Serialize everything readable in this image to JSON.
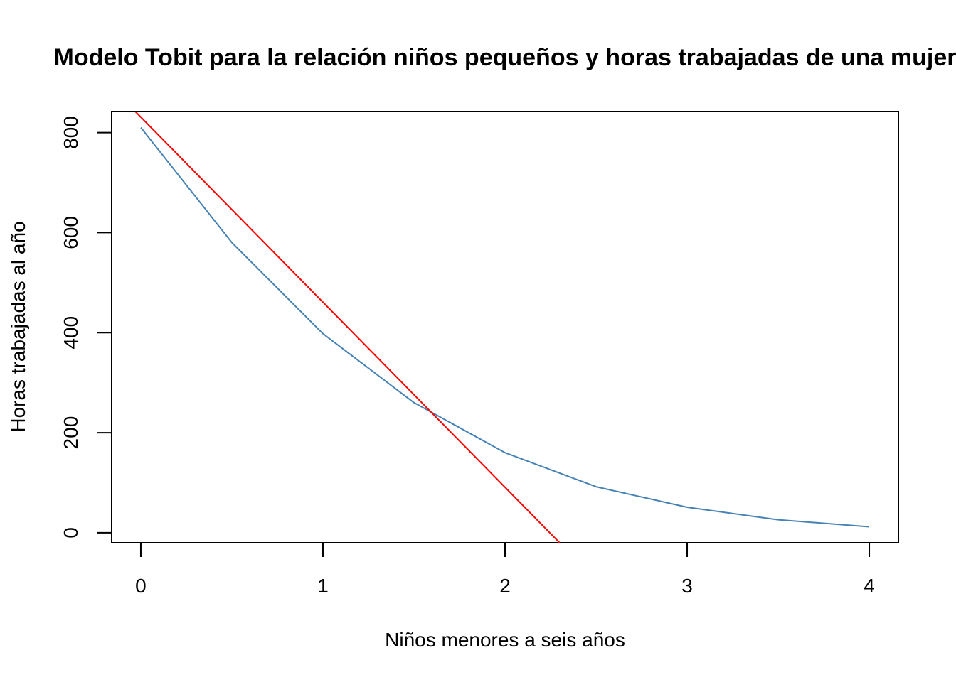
{
  "chart_data": {
    "type": "line",
    "title": "Modelo Tobit para la relación niños pequeños y horas trabajadas de una mujer",
    "xlabel": "Niños menores a seis años",
    "ylabel": "Horas trabajadas al año",
    "xlim": [
      -0.16,
      4.16
    ],
    "ylim": [
      -20,
      842
    ],
    "x_ticks": [
      0,
      1,
      2,
      3,
      4
    ],
    "x_tick_labels": [
      "0",
      "1",
      "2",
      "3",
      "4"
    ],
    "y_ticks": [
      0,
      200,
      400,
      600,
      800
    ],
    "y_tick_labels": [
      "0",
      "200",
      "400",
      "600",
      "800"
    ],
    "grid": false,
    "series": [
      {
        "color": "#4682B4",
        "x": [
          0,
          0.5,
          1,
          1.5,
          2,
          2.5,
          3,
          3.5,
          4
        ],
        "y": [
          810,
          580,
          398,
          260,
          160,
          92,
          51,
          26,
          12
        ]
      },
      {
        "color": "#FF0000",
        "x": [
          -0.03,
          2.3
        ],
        "y": [
          842,
          -20
        ]
      }
    ]
  }
}
